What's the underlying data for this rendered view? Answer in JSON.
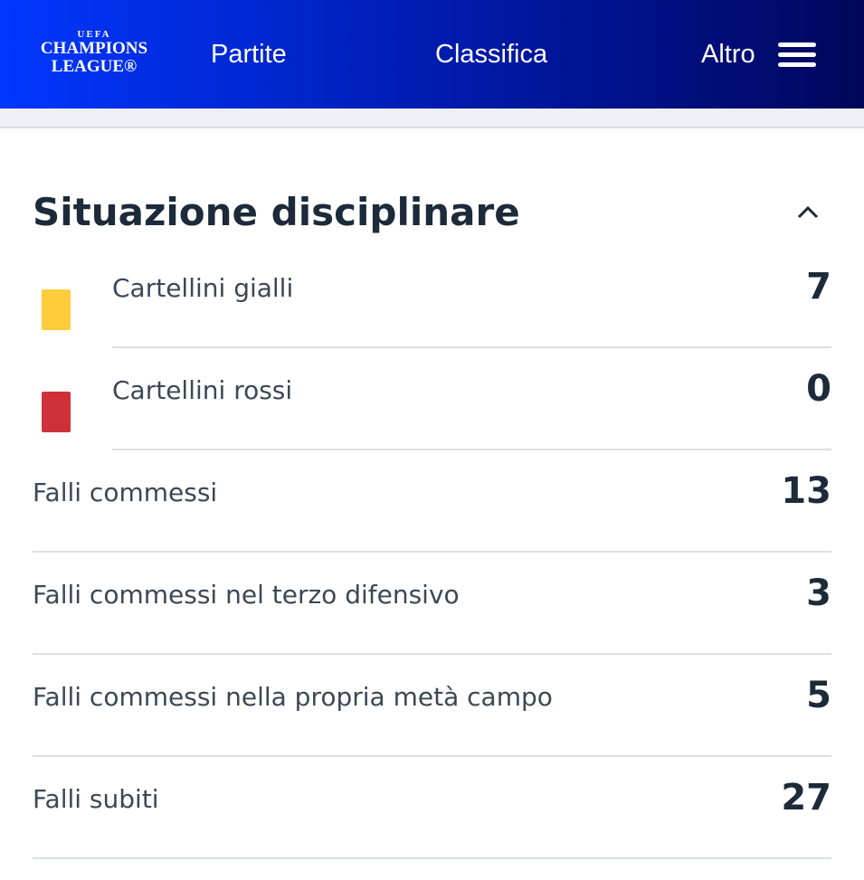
{
  "header": {
    "logo": {
      "uefa": "UEFA",
      "line1": "CHAMPIONS",
      "line2": "LEAGUE®"
    },
    "nav": [
      "Partite",
      "Classifica",
      "Altro"
    ]
  },
  "section": {
    "title": "Situazione disciplinare",
    "expanded": true
  },
  "colors": {
    "yellow_card": "#ffcd3c",
    "red_card": "#d0303a",
    "header_start": "#0037ff",
    "header_end": "#00075a"
  },
  "stats": [
    {
      "label": "Cartellini gialli",
      "value": "7",
      "icon": "yellow-card-icon"
    },
    {
      "label": "Cartellini rossi",
      "value": "0",
      "icon": "red-card-icon"
    },
    {
      "label": "Falli commessi",
      "value": "13"
    },
    {
      "label": "Falli commessi nel terzo difensivo",
      "value": "3"
    },
    {
      "label": "Falli commessi nella propria metà campo",
      "value": "5"
    },
    {
      "label": "Falli subiti",
      "value": "27"
    }
  ]
}
